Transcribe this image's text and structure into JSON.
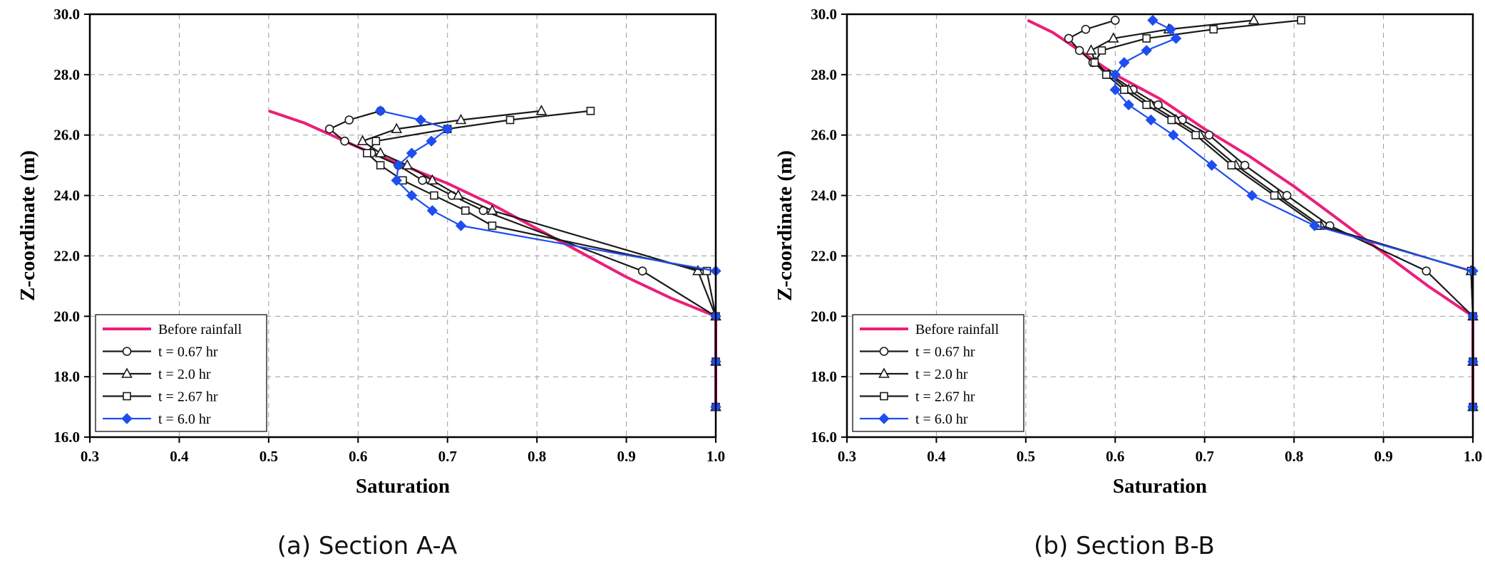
{
  "colors": {
    "before": "#ea1f7a",
    "black": "#1a1a1a",
    "blue": "#1f4ef0"
  },
  "chart_data": [
    {
      "type": "line",
      "caption": "(a) Section A-A",
      "xlabel": "Saturation",
      "ylabel": "Z-coordinate (m)",
      "xlim": [
        0.3,
        1.0
      ],
      "ylim": [
        16.0,
        30.0
      ],
      "xticks": [
        "0.3",
        "0.4",
        "0.5",
        "0.6",
        "0.7",
        "0.8",
        "0.9",
        "1.0"
      ],
      "yticks": [
        "16.0",
        "18.0",
        "20.0",
        "22.0",
        "24.0",
        "26.0",
        "28.0",
        "30.0"
      ],
      "grid": true,
      "legend_position": "bottom-left",
      "series": [
        {
          "name": "Before rainfall",
          "color_key": "before",
          "marker": "none",
          "points": [
            [
              0.5,
              26.8
            ],
            [
              0.54,
              26.4
            ],
            [
              0.57,
              26.0
            ],
            [
              0.6,
              25.6
            ],
            [
              0.65,
              25.0
            ],
            [
              0.7,
              24.4
            ],
            [
              0.75,
              23.7
            ],
            [
              0.8,
              22.9
            ],
            [
              0.85,
              22.1
            ],
            [
              0.9,
              21.3
            ],
            [
              0.95,
              20.6
            ],
            [
              1.0,
              20.0
            ],
            [
              1.0,
              18.5
            ],
            [
              1.0,
              17.0
            ]
          ]
        },
        {
          "name": "t = 0.67 hr",
          "color_key": "black",
          "marker": "circle",
          "points": [
            [
              0.625,
              26.8
            ],
            [
              0.59,
              26.5
            ],
            [
              0.568,
              26.2
            ],
            [
              0.585,
              25.8
            ],
            [
              0.615,
              25.4
            ],
            [
              0.645,
              25.0
            ],
            [
              0.672,
              24.5
            ],
            [
              0.705,
              24.0
            ],
            [
              0.74,
              23.5
            ],
            [
              0.918,
              21.5
            ],
            [
              1.0,
              20.0
            ],
            [
              1.0,
              18.5
            ],
            [
              1.0,
              17.0
            ]
          ]
        },
        {
          "name": "t = 2.0 hr",
          "color_key": "black",
          "marker": "triangle",
          "points": [
            [
              0.805,
              26.8
            ],
            [
              0.715,
              26.5
            ],
            [
              0.643,
              26.2
            ],
            [
              0.605,
              25.8
            ],
            [
              0.625,
              25.4
            ],
            [
              0.655,
              25.0
            ],
            [
              0.683,
              24.5
            ],
            [
              0.712,
              24.0
            ],
            [
              0.75,
              23.5
            ],
            [
              0.98,
              21.5
            ],
            [
              1.0,
              20.0
            ],
            [
              1.0,
              18.5
            ],
            [
              1.0,
              17.0
            ]
          ]
        },
        {
          "name": "t = 2.67 hr",
          "color_key": "black",
          "marker": "square",
          "points": [
            [
              0.86,
              26.8
            ],
            [
              0.77,
              26.5
            ],
            [
              0.7,
              26.2
            ],
            [
              0.62,
              25.8
            ],
            [
              0.61,
              25.4
            ],
            [
              0.625,
              25.0
            ],
            [
              0.65,
              24.5
            ],
            [
              0.685,
              24.0
            ],
            [
              0.72,
              23.5
            ],
            [
              0.75,
              23.0
            ],
            [
              0.99,
              21.5
            ],
            [
              1.0,
              20.0
            ],
            [
              1.0,
              18.5
            ],
            [
              1.0,
              17.0
            ]
          ]
        },
        {
          "name": "t = 6.0 hr",
          "color_key": "blue",
          "marker": "diamond",
          "points": [
            [
              0.625,
              26.8
            ],
            [
              0.67,
              26.5
            ],
            [
              0.7,
              26.2
            ],
            [
              0.682,
              25.8
            ],
            [
              0.66,
              25.4
            ],
            [
              0.645,
              25.0
            ],
            [
              0.643,
              24.5
            ],
            [
              0.66,
              24.0
            ],
            [
              0.683,
              23.5
            ],
            [
              0.715,
              23.0
            ],
            [
              1.0,
              21.5
            ],
            [
              1.0,
              20.0
            ],
            [
              1.0,
              18.5
            ],
            [
              1.0,
              17.0
            ]
          ]
        }
      ]
    },
    {
      "type": "line",
      "caption": "(b) Section B-B",
      "xlabel": "Saturation",
      "ylabel": "Z-coordinate (m)",
      "xlim": [
        0.3,
        1.0
      ],
      "ylim": [
        16.0,
        30.0
      ],
      "xticks": [
        "0.3",
        "0.4",
        "0.5",
        "0.6",
        "0.7",
        "0.8",
        "0.9",
        "1.0"
      ],
      "yticks": [
        "16.0",
        "18.0",
        "20.0",
        "22.0",
        "24.0",
        "26.0",
        "28.0",
        "30.0"
      ],
      "grid": true,
      "legend_position": "bottom-left",
      "series": [
        {
          "name": "Before rainfall",
          "color_key": "before",
          "marker": "none",
          "points": [
            [
              0.502,
              29.8
            ],
            [
              0.53,
              29.4
            ],
            [
              0.56,
              28.8
            ],
            [
              0.58,
              28.4
            ],
            [
              0.6,
              28.0
            ],
            [
              0.65,
              27.2
            ],
            [
              0.7,
              26.2
            ],
            [
              0.75,
              25.3
            ],
            [
              0.8,
              24.3
            ],
            [
              0.85,
              23.2
            ],
            [
              0.9,
              22.1
            ],
            [
              0.95,
              21.0
            ],
            [
              1.0,
              20.0
            ],
            [
              1.0,
              18.5
            ],
            [
              1.0,
              17.0
            ]
          ]
        },
        {
          "name": "t = 0.67 hr",
          "color_key": "black",
          "marker": "circle",
          "points": [
            [
              0.6,
              29.8
            ],
            [
              0.567,
              29.5
            ],
            [
              0.548,
              29.2
            ],
            [
              0.56,
              28.8
            ],
            [
              0.575,
              28.4
            ],
            [
              0.595,
              28.0
            ],
            [
              0.62,
              27.5
            ],
            [
              0.648,
              27.0
            ],
            [
              0.675,
              26.5
            ],
            [
              0.705,
              26.0
            ],
            [
              0.745,
              25.0
            ],
            [
              0.792,
              24.0
            ],
            [
              0.84,
              23.0
            ],
            [
              0.948,
              21.5
            ],
            [
              1.0,
              20.0
            ],
            [
              1.0,
              18.5
            ],
            [
              1.0,
              17.0
            ]
          ]
        },
        {
          "name": "t = 2.0 hr",
          "color_key": "black",
          "marker": "triangle",
          "points": [
            [
              0.755,
              29.8
            ],
            [
              0.66,
              29.5
            ],
            [
              0.598,
              29.2
            ],
            [
              0.573,
              28.8
            ],
            [
              0.578,
              28.4
            ],
            [
              0.593,
              28.0
            ],
            [
              0.615,
              27.5
            ],
            [
              0.64,
              27.0
            ],
            [
              0.668,
              26.5
            ],
            [
              0.695,
              26.0
            ],
            [
              0.735,
              25.0
            ],
            [
              0.782,
              24.0
            ],
            [
              0.83,
              23.0
            ],
            [
              0.998,
              21.5
            ],
            [
              1.0,
              20.0
            ],
            [
              1.0,
              18.5
            ],
            [
              1.0,
              17.0
            ]
          ]
        },
        {
          "name": "t = 2.67 hr",
          "color_key": "black",
          "marker": "square",
          "points": [
            [
              0.808,
              29.8
            ],
            [
              0.71,
              29.5
            ],
            [
              0.635,
              29.2
            ],
            [
              0.585,
              28.8
            ],
            [
              0.577,
              28.4
            ],
            [
              0.59,
              28.0
            ],
            [
              0.61,
              27.5
            ],
            [
              0.635,
              27.0
            ],
            [
              0.663,
              26.5
            ],
            [
              0.69,
              26.0
            ],
            [
              0.73,
              25.0
            ],
            [
              0.778,
              24.0
            ],
            [
              0.826,
              23.0
            ],
            [
              0.998,
              21.5
            ],
            [
              1.0,
              20.0
            ],
            [
              1.0,
              18.5
            ],
            [
              1.0,
              17.0
            ]
          ]
        },
        {
          "name": "t = 6.0 hr",
          "color_key": "blue",
          "marker": "diamond",
          "points": [
            [
              0.642,
              29.8
            ],
            [
              0.662,
              29.5
            ],
            [
              0.668,
              29.2
            ],
            [
              0.635,
              28.8
            ],
            [
              0.61,
              28.4
            ],
            [
              0.6,
              28.0
            ],
            [
              0.6,
              27.5
            ],
            [
              0.615,
              27.0
            ],
            [
              0.64,
              26.5
            ],
            [
              0.665,
              26.0
            ],
            [
              0.708,
              25.0
            ],
            [
              0.753,
              24.0
            ],
            [
              0.823,
              23.0
            ],
            [
              1.0,
              21.5
            ],
            [
              1.0,
              20.0
            ],
            [
              1.0,
              18.5
            ],
            [
              1.0,
              17.0
            ]
          ]
        }
      ]
    }
  ]
}
